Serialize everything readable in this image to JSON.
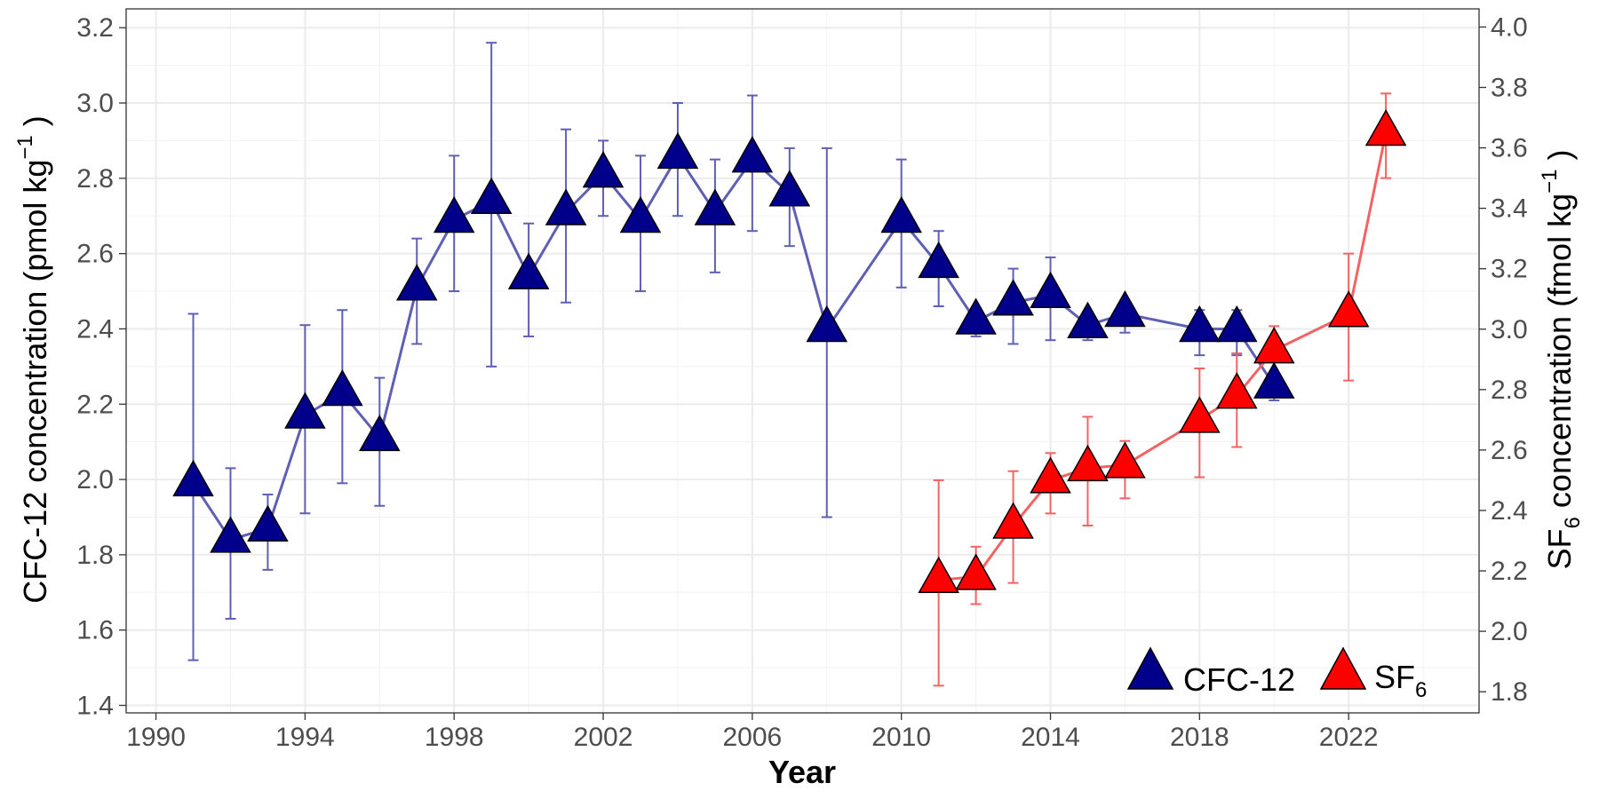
{
  "chart_data": {
    "type": "line",
    "title": "",
    "xlabel": "Year",
    "xlim": [
      1989.2,
      2025.5
    ],
    "xticks": [
      1990,
      1994,
      1998,
      2002,
      2006,
      2010,
      2014,
      2018,
      2022
    ],
    "y_left": {
      "label_main": "CFC-12 concentration (pmol kg",
      "label_sup": "−1",
      "label_end": " )",
      "lim": [
        1.38,
        3.25
      ],
      "ticks": [
        "1.4",
        "1.6",
        "1.8",
        "2.0",
        "2.2",
        "2.4",
        "2.6",
        "2.8",
        "3.0",
        "3.2"
      ]
    },
    "y_right": {
      "label_prefix": "SF",
      "label_sub": "6",
      "label_main": " concentration (fmol kg",
      "label_sup": "−1",
      "label_end": " )",
      "lim": [
        1.73,
        4.06
      ],
      "ticks": [
        "1.8",
        "2.0",
        "2.2",
        "2.4",
        "2.6",
        "2.8",
        "3.0",
        "3.2",
        "3.4",
        "3.6",
        "3.8",
        "4.0"
      ]
    },
    "grid": true,
    "legend_position": "bottom-right",
    "series": [
      {
        "name": "CFC-12",
        "axis": "left",
        "line_color": "#5f5fb5",
        "marker_color": "#00008b",
        "points": [
          {
            "x": 1991,
            "y": 1.99,
            "lo": 1.52,
            "hi": 2.44
          },
          {
            "x": 1992,
            "y": 1.84,
            "lo": 1.63,
            "hi": 2.03
          },
          {
            "x": 1993,
            "y": 1.87,
            "lo": 1.76,
            "hi": 1.96
          },
          {
            "x": 1994,
            "y": 2.17,
            "lo": 1.91,
            "hi": 2.41
          },
          {
            "x": 1995,
            "y": 2.23,
            "lo": 1.99,
            "hi": 2.45
          },
          {
            "x": 1996,
            "y": 2.11,
            "lo": 1.93,
            "hi": 2.27
          },
          {
            "x": 1997,
            "y": 2.51,
            "lo": 2.36,
            "hi": 2.64
          },
          {
            "x": 1998,
            "y": 2.69,
            "lo": 2.5,
            "hi": 2.86
          },
          {
            "x": 1999,
            "y": 2.74,
            "lo": 2.3,
            "hi": 3.16
          },
          {
            "x": 2000,
            "y": 2.54,
            "lo": 2.38,
            "hi": 2.68
          },
          {
            "x": 2001,
            "y": 2.71,
            "lo": 2.47,
            "hi": 2.93
          },
          {
            "x": 2002,
            "y": 2.81,
            "lo": 2.7,
            "hi": 2.9
          },
          {
            "x": 2003,
            "y": 2.69,
            "lo": 2.5,
            "hi": 2.86
          },
          {
            "x": 2004,
            "y": 2.86,
            "lo": 2.7,
            "hi": 3.0
          },
          {
            "x": 2005,
            "y": 2.71,
            "lo": 2.55,
            "hi": 2.85
          },
          {
            "x": 2006,
            "y": 2.85,
            "lo": 2.66,
            "hi": 3.02
          },
          {
            "x": 2007,
            "y": 2.76,
            "lo": 2.62,
            "hi": 2.88
          },
          {
            "x": 2008,
            "y": 2.4,
            "lo": 1.9,
            "hi": 2.88
          },
          {
            "x": 2010,
            "y": 2.69,
            "lo": 2.51,
            "hi": 2.85
          },
          {
            "x": 2011,
            "y": 2.57,
            "lo": 2.46,
            "hi": 2.66
          },
          {
            "x": 2012,
            "y": 2.42,
            "lo": 2.38,
            "hi": 2.44
          },
          {
            "x": 2013,
            "y": 2.47,
            "lo": 2.36,
            "hi": 2.56
          },
          {
            "x": 2014,
            "y": 2.49,
            "lo": 2.37,
            "hi": 2.59
          },
          {
            "x": 2015,
            "y": 2.41,
            "lo": 2.37,
            "hi": 2.43
          },
          {
            "x": 2016,
            "y": 2.44,
            "lo": 2.39,
            "hi": 2.47
          },
          {
            "x": 2018,
            "y": 2.4,
            "lo": 2.33,
            "hi": 2.45
          },
          {
            "x": 2019,
            "y": 2.4,
            "lo": 2.33,
            "hi": 2.45
          },
          {
            "x": 2020,
            "y": 2.25,
            "lo": 2.21,
            "hi": 2.27
          }
        ]
      },
      {
        "name": "SF6",
        "legend_prefix": "SF",
        "legend_sub": "6",
        "axis": "right",
        "line_color": "#f36363",
        "marker_color": "#ff0000",
        "points": [
          {
            "x": 2011,
            "y": 2.17,
            "lo": 1.82,
            "hi": 2.5
          },
          {
            "x": 2012,
            "y": 2.18,
            "lo": 2.09,
            "hi": 2.28
          },
          {
            "x": 2013,
            "y": 2.35,
            "lo": 2.16,
            "hi": 2.53
          },
          {
            "x": 2014,
            "y": 2.5,
            "lo": 2.39,
            "hi": 2.59
          },
          {
            "x": 2015,
            "y": 2.54,
            "lo": 2.35,
            "hi": 2.71
          },
          {
            "x": 2016,
            "y": 2.55,
            "lo": 2.44,
            "hi": 2.63
          },
          {
            "x": 2018,
            "y": 2.7,
            "lo": 2.51,
            "hi": 2.87
          },
          {
            "x": 2019,
            "y": 2.78,
            "lo": 2.61,
            "hi": 2.92
          },
          {
            "x": 2020,
            "y": 2.93,
            "lo": 2.84,
            "hi": 3.01
          },
          {
            "x": 2022,
            "y": 3.05,
            "lo": 2.83,
            "hi": 3.25
          },
          {
            "x": 2023,
            "y": 3.65,
            "lo": 3.5,
            "hi": 3.78
          }
        ]
      }
    ]
  }
}
